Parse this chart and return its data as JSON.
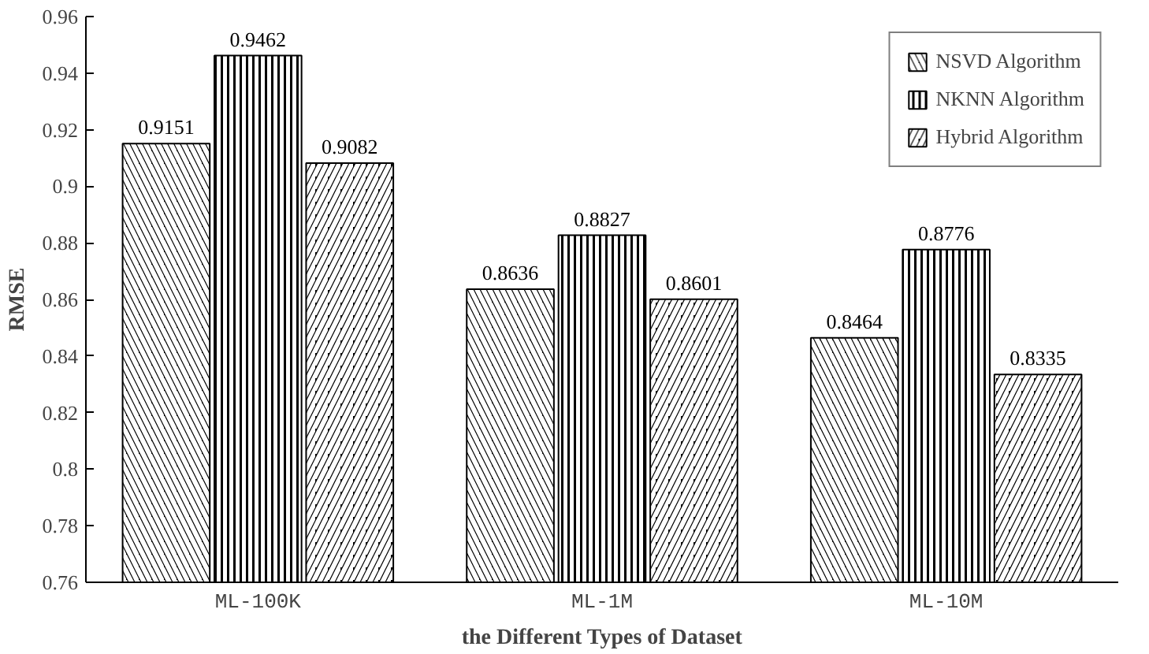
{
  "chart_data": {
    "type": "bar",
    "xlabel": "the Different Types of Dataset",
    "ylabel": "RMSE",
    "categories": [
      "ML-100K",
      "ML-1M",
      "ML-10M"
    ],
    "series": [
      {
        "name": "NSVD Algorithm",
        "color": "#000000",
        "values": [
          0.9151,
          0.8636,
          0.8464
        ]
      },
      {
        "name": "NKNN Algorithm",
        "color": "#000000",
        "values": [
          0.9462,
          0.8827,
          0.8776
        ]
      },
      {
        "name": "Hybrid Algorithm",
        "color": "#000000",
        "values": [
          0.9082,
          0.8601,
          0.8335
        ]
      }
    ],
    "ylim": [
      0.76,
      0.96
    ],
    "yticks": [
      0.76,
      0.78,
      0.8,
      0.82,
      0.84,
      0.86,
      0.88,
      0.9,
      0.92,
      0.94,
      0.96
    ],
    "data_labels": true,
    "legend": "top right",
    "grid": false
  }
}
